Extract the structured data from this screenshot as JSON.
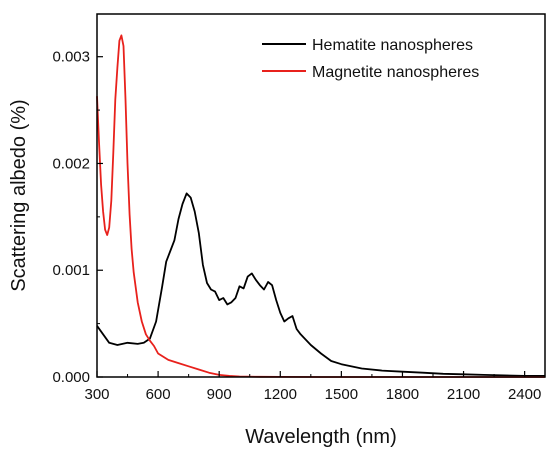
{
  "chart_data": {
    "type": "line",
    "xlabel": "Wavelength (nm)",
    "ylabel": "Scattering albedo (%)",
    "xlim": [
      300,
      2500
    ],
    "ylim": [
      0,
      0.0034
    ],
    "x_ticks": [
      300,
      600,
      900,
      1200,
      1500,
      1800,
      2100,
      2400
    ],
    "x_tick_labels": [
      "300",
      "600",
      "900",
      "1200",
      "1500",
      "1800",
      "2100",
      "2400"
    ],
    "y_ticks": [
      0,
      0.001,
      0.002,
      0.003
    ],
    "y_tick_labels": [
      "0.000",
      "0.001",
      "0.002",
      "0.003"
    ],
    "grid": false,
    "legend_position": "top-right",
    "series": [
      {
        "name": "Hematite nanospheres",
        "color": "#000000",
        "x": [
          300,
          330,
          360,
          400,
          450,
          500,
          530,
          560,
          590,
          620,
          640,
          660,
          680,
          700,
          720,
          740,
          760,
          780,
          800,
          820,
          840,
          860,
          880,
          900,
          920,
          940,
          960,
          980,
          1000,
          1020,
          1040,
          1060,
          1080,
          1100,
          1120,
          1140,
          1160,
          1180,
          1200,
          1220,
          1240,
          1260,
          1280,
          1300,
          1350,
          1400,
          1450,
          1500,
          1600,
          1700,
          1800,
          1900,
          2000,
          2100,
          2200,
          2300,
          2400,
          2500
        ],
        "y": [
          0.00048,
          0.0004,
          0.00032,
          0.0003,
          0.00032,
          0.00031,
          0.00032,
          0.00036,
          0.00052,
          0.00085,
          0.00108,
          0.00118,
          0.00128,
          0.00148,
          0.00162,
          0.00172,
          0.00168,
          0.00155,
          0.00135,
          0.00105,
          0.00088,
          0.00082,
          0.0008,
          0.00072,
          0.00074,
          0.00068,
          0.0007,
          0.00074,
          0.00085,
          0.00083,
          0.00094,
          0.00097,
          0.00091,
          0.00086,
          0.00082,
          0.00089,
          0.00086,
          0.00072,
          0.0006,
          0.00052,
          0.00055,
          0.00057,
          0.00045,
          0.0004,
          0.0003,
          0.00022,
          0.00015,
          0.00012,
          8e-05,
          6e-05,
          5e-05,
          4e-05,
          3e-05,
          2.5e-05,
          2e-05,
          1.5e-05,
          1e-05,
          1e-05
        ]
      },
      {
        "name": "Magnetite nanospheres",
        "color": "#e8211c",
        "x": [
          300,
          310,
          320,
          330,
          340,
          350,
          360,
          370,
          380,
          390,
          400,
          410,
          420,
          430,
          440,
          450,
          460,
          470,
          480,
          500,
          520,
          540,
          560,
          580,
          600,
          650,
          700,
          750,
          800,
          850,
          900,
          950,
          1000,
          1100,
          1200,
          1400,
          1600,
          1800,
          2000,
          2200,
          2500
        ],
        "y": [
          0.00263,
          0.0022,
          0.0018,
          0.00155,
          0.00138,
          0.00133,
          0.0014,
          0.00165,
          0.0021,
          0.0026,
          0.0029,
          0.00315,
          0.0032,
          0.0031,
          0.0026,
          0.002,
          0.00152,
          0.0012,
          0.00098,
          0.0007,
          0.00052,
          0.0004,
          0.00034,
          0.00029,
          0.00022,
          0.00016,
          0.00013,
          0.0001,
          7e-05,
          4e-05,
          2e-05,
          1e-05,
          5e-06,
          2e-06,
          1e-06,
          0,
          0,
          0,
          0,
          0,
          0
        ]
      }
    ]
  }
}
